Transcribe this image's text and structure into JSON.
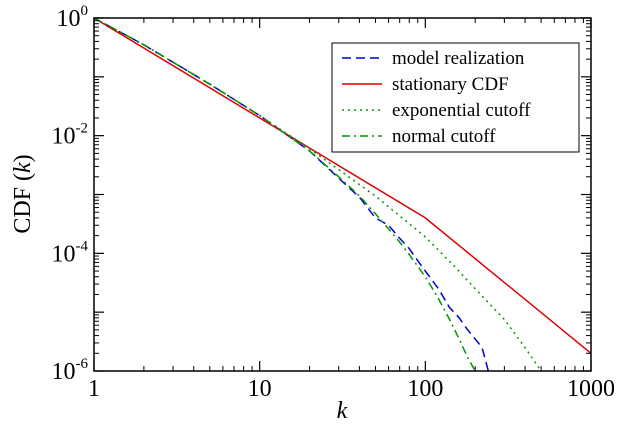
{
  "chart_data": {
    "type": "line",
    "x_scale": "log",
    "y_scale": "log",
    "xlim": [
      1,
      1000
    ],
    "ylim": [
      1e-06,
      1
    ],
    "xlabel": {
      "prefix": "",
      "italic": "k",
      "suffix": ""
    },
    "ylabel": {
      "prefix": "CDF (",
      "italic": "k",
      "suffix": ")"
    },
    "x_ticks": [
      {
        "value": 1,
        "label": "1"
      },
      {
        "value": 10,
        "label": "10"
      },
      {
        "value": 100,
        "label": "100"
      },
      {
        "value": 1000,
        "label": "1000"
      }
    ],
    "y_ticks": [
      {
        "value": 1,
        "base": "10",
        "exp": "0"
      },
      {
        "value": 0.01,
        "base": "10",
        "exp": "-2"
      },
      {
        "value": 0.0001,
        "base": "10",
        "exp": "-4"
      },
      {
        "value": 1e-06,
        "base": "10",
        "exp": "-6"
      }
    ],
    "grid": false,
    "legend_position": "top-right",
    "series": [
      {
        "name": "model realization",
        "color": "#0000cc",
        "dash": "dashed",
        "x": [
          1,
          2,
          5,
          10,
          20,
          30,
          40,
          50,
          60,
          70,
          80,
          90,
          100,
          120,
          140,
          160,
          180,
          200,
          220,
          240
        ],
        "y": [
          1,
          0.35,
          0.075,
          0.022,
          0.0055,
          0.0019,
          0.0009,
          0.0004,
          0.0003,
          0.00018,
          0.00012,
          7.5e-05,
          5e-05,
          2.5e-05,
          1.2e-05,
          8e-06,
          5e-06,
          3.5e-06,
          2.5e-06,
          1e-06
        ]
      },
      {
        "name": "stationary CDF",
        "color": "#e00000",
        "dash": "solid",
        "x": [
          1,
          10,
          100,
          1000
        ],
        "y": [
          1,
          0.02,
          0.0004,
          2e-06
        ]
      },
      {
        "name": "exponential cutoff",
        "color": "#009900",
        "dash": "dotted",
        "x": [
          1,
          2,
          5,
          10,
          20,
          50,
          100,
          150,
          200,
          300,
          400,
          500
        ],
        "y": [
          1,
          0.35,
          0.075,
          0.022,
          0.006,
          0.00094,
          0.00019,
          6e-05,
          2.5e-05,
          7.5e-06,
          2.5e-06,
          1e-06
        ]
      },
      {
        "name": "normal cutoff",
        "color": "#009900",
        "dash": "dashdot",
        "x": [
          1,
          2,
          5,
          10,
          20,
          30,
          40,
          50,
          60,
          70,
          80,
          90,
          100,
          120,
          140,
          160,
          180,
          200
        ],
        "y": [
          1,
          0.35,
          0.075,
          0.022,
          0.0055,
          0.002,
          0.00095,
          0.00047,
          0.00026,
          0.000155,
          9.5e-05,
          6e-05,
          4e-05,
          1.7e-05,
          7.5e-06,
          3.5e-06,
          1.7e-06,
          1e-06
        ]
      }
    ]
  }
}
